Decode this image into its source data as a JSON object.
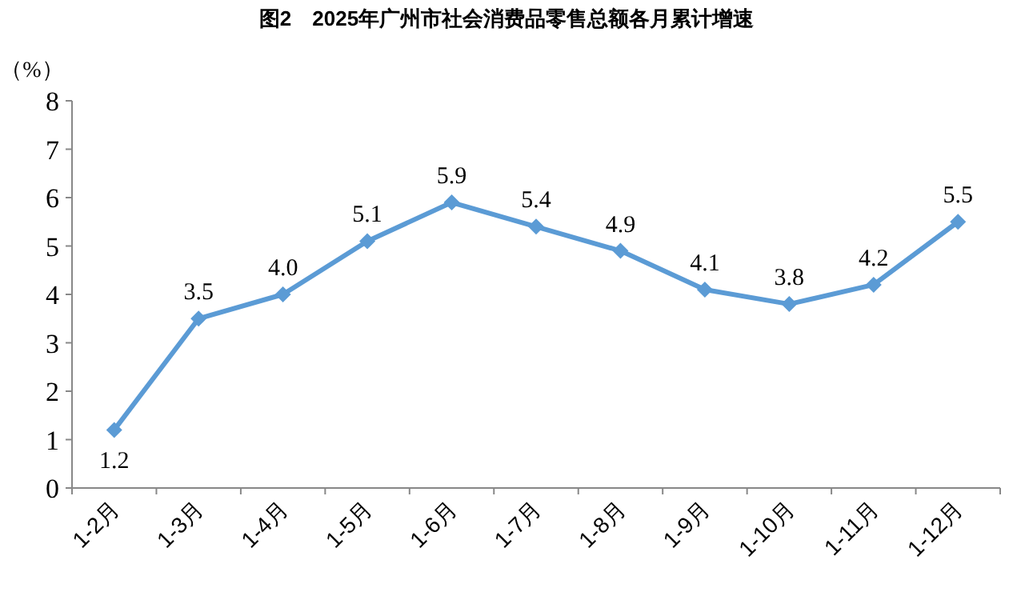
{
  "chart_data": {
    "type": "line",
    "title": "图2　2025年广州市社会消费品零售总额各月累计增速",
    "ylabel": "（%）",
    "categories": [
      "1-2月",
      "1-3月",
      "1-4月",
      "1-5月",
      "1-6月",
      "1-7月",
      "1-8月",
      "1-9月",
      "1-10月",
      "1-11月",
      "1-12月"
    ],
    "series": [
      {
        "color": "#5b9bd5",
        "values": [
          1.2,
          3.5,
          4.0,
          5.1,
          5.9,
          5.4,
          4.9,
          4.1,
          3.8,
          4.2,
          5.5
        ]
      }
    ],
    "value_labels": [
      "1.2",
      "3.5",
      "4.0",
      "5.1",
      "5.9",
      "5.4",
      "4.9",
      "4.1",
      "3.8",
      "4.2",
      "5.5"
    ],
    "ylim": [
      0,
      8
    ],
    "yticks": [
      0,
      1,
      2,
      3,
      4,
      5,
      6,
      7,
      8
    ],
    "marker": "diamond",
    "line_style": "solid",
    "grid": false
  }
}
